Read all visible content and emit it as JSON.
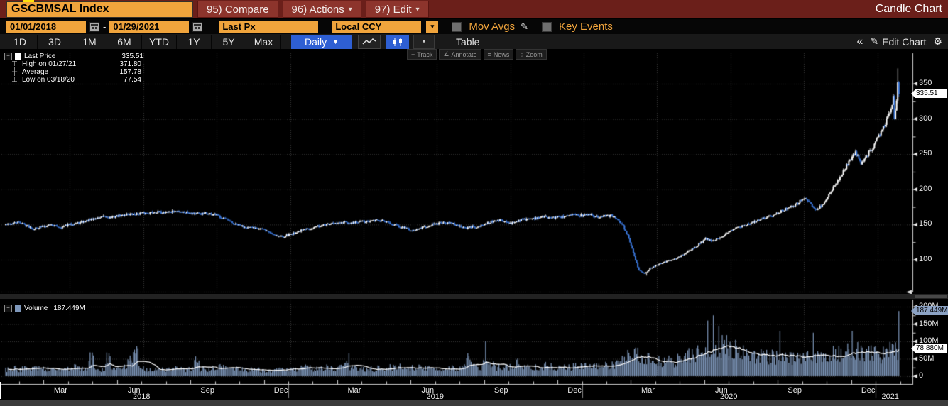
{
  "titlebar": {
    "ticker": "GSCBMSAL Index",
    "compare": "95) Compare",
    "actions": "96) Actions",
    "edit": "97) Edit",
    "right_title": "Candle Chart"
  },
  "fieldbar": {
    "date_from": "01/01/2018",
    "separator": "-",
    "date_to": "01/29/2021",
    "security_field": "Last Px",
    "currency": "Local CCY",
    "mov_avgs_label": "Mov Avgs",
    "key_events_label": "Key Events"
  },
  "toolbar": {
    "ranges": [
      "1D",
      "3D",
      "1M",
      "6M",
      "YTD",
      "1Y",
      "5Y",
      "Max"
    ],
    "frequency": "Daily",
    "table_label": "Table",
    "edit_chart_label": "Edit Chart"
  },
  "chart_toolbar": {
    "track": "Track",
    "annotate": "Annotate",
    "news": "News",
    "zoom": "Zoom"
  },
  "legend": {
    "rows": [
      {
        "label": "Last Price",
        "value": "335.51"
      },
      {
        "label": "High on 01/27/21",
        "value": "371.80"
      },
      {
        "label": "Average",
        "value": "157.78"
      },
      {
        "label": "Low on 03/18/20",
        "value": "77.54"
      }
    ]
  },
  "volume_legend": {
    "label": "Volume",
    "value": "187.449M"
  },
  "badges": {
    "last_price": "335.51",
    "volume": "187.449M",
    "volume_ma": "78.880M"
  },
  "icons": {
    "dropdown_arrow": "▼",
    "caret": "▾",
    "chevrons_left": "«",
    "pencil": "✎",
    "gear": "⚙",
    "track": "+",
    "annotate": "∠",
    "news": "≡",
    "zoom": "○",
    "expander": "−",
    "high_marker": "⊤",
    "avg_marker": "┼",
    "low_marker": "⊥"
  },
  "colors": {
    "amber": "#f0a43c",
    "maroon_bar": "#6b1f1a",
    "maroon_button": "#8d342c",
    "accent_blue": "#2e5fd3",
    "candle_up": "#ffffff",
    "candle_down": "#3c79de",
    "volume_bar": "#7e97ba",
    "grid": "#3a3a3a",
    "ma_line": "#ffffff"
  },
  "chart_data": {
    "type": "candlestick",
    "title": "GSCBMSAL Index, Daily candles with volume, 01/01/2018 - 01/29/2021",
    "panes": [
      "price",
      "volume"
    ],
    "price_axis": {
      "side": "right",
      "ticks": [
        350,
        300,
        250,
        200,
        150,
        100
      ]
    },
    "volume_axis": {
      "side": "right",
      "ticks": [
        {
          "label": "200M",
          "value": 200
        },
        {
          "label": "150M",
          "value": 150
        },
        {
          "label": "100M",
          "value": 100
        },
        {
          "label": "50M",
          "value": 50
        },
        {
          "label": "0",
          "value": 0
        }
      ]
    },
    "time_axis": {
      "months": [
        {
          "label": "Mar",
          "m": 2
        },
        {
          "label": "Jun",
          "m": 5
        },
        {
          "label": "Sep",
          "m": 8
        },
        {
          "label": "Dec",
          "m": 11
        },
        {
          "label": "Mar",
          "m": 14
        },
        {
          "label": "Jun",
          "m": 17
        },
        {
          "label": "Sep",
          "m": 20
        },
        {
          "label": "Dec",
          "m": 23
        },
        {
          "label": "Mar",
          "m": 26
        },
        {
          "label": "Jun",
          "m": 29
        },
        {
          "label": "Sep",
          "m": 32
        },
        {
          "label": "Dec",
          "m": 35
        }
      ],
      "years": [
        {
          "label": "2018",
          "m": 6
        },
        {
          "label": "2019",
          "m": 18
        },
        {
          "label": "2020",
          "m": 30
        },
        {
          "label": "2021",
          "m": 36.6
        }
      ],
      "year_separators_m": [
        12,
        24,
        36
      ]
    },
    "stats": {
      "last_price": 335.51,
      "high": {
        "date": "01/27/21",
        "value": 371.8
      },
      "average": 157.78,
      "low": {
        "date": "03/18/20",
        "value": 77.54
      },
      "last_volume_m": 187.449,
      "volume_ma_m": 78.88
    },
    "sampling": "weekly",
    "weekly_closes": [
      150,
      151,
      153,
      152,
      148,
      144,
      146,
      148,
      150,
      148,
      146,
      149,
      151,
      152,
      154,
      156,
      158,
      160,
      161,
      160,
      162,
      163,
      165,
      164,
      166,
      166,
      167,
      168,
      167,
      168,
      168,
      169,
      168,
      167,
      166,
      165,
      166,
      165,
      163,
      160,
      156,
      151,
      149,
      147,
      145,
      146,
      144,
      141,
      137,
      134,
      133,
      136,
      138,
      141,
      143,
      145,
      147,
      149,
      150,
      151,
      152,
      153,
      151,
      153,
      154,
      154,
      155,
      156,
      155,
      153,
      150,
      147,
      145,
      141,
      143,
      146,
      148,
      150,
      152,
      153,
      152,
      150,
      147,
      145,
      147,
      146,
      150,
      153,
      155,
      156,
      154,
      152,
      155,
      157,
      158,
      159,
      160,
      161,
      160,
      160,
      161,
      162,
      163,
      163,
      163,
      164,
      162,
      161,
      162,
      163,
      158,
      150,
      135,
      110,
      85,
      80,
      88,
      92,
      95,
      98,
      100,
      103,
      107,
      112,
      117,
      123,
      130,
      127,
      129,
      133,
      138,
      143,
      147,
      149,
      152,
      155,
      158,
      160,
      162,
      166,
      171,
      174,
      176,
      183,
      188,
      178,
      170,
      178,
      190,
      202,
      214,
      228,
      242,
      252,
      238,
      248,
      258,
      272,
      288,
      305,
      335.51
    ],
    "weekly_volumes_m": [
      20,
      22,
      19,
      21,
      24,
      26,
      22,
      20,
      22,
      20,
      18,
      22,
      25,
      21,
      19,
      50,
      23,
      20,
      55,
      22,
      20,
      24,
      52,
      62,
      22,
      21,
      19,
      18,
      20,
      19,
      22,
      20,
      18,
      21,
      44,
      20,
      19,
      22,
      25,
      27,
      24,
      22,
      20,
      19,
      21,
      18,
      16,
      15,
      17,
      19,
      22,
      18,
      20,
      22,
      24,
      21,
      23,
      25,
      22,
      20,
      26,
      48,
      24,
      22,
      21,
      22,
      20,
      23,
      21,
      25,
      28,
      26,
      24,
      27,
      25,
      22,
      24,
      22,
      20,
      23,
      25,
      22,
      28,
      52,
      26,
      24,
      100,
      30,
      26,
      28,
      26,
      24,
      40,
      26,
      25,
      28,
      26,
      30,
      27,
      26,
      28,
      25,
      27,
      30,
      28,
      30,
      27,
      29,
      30,
      34,
      38,
      45,
      55,
      60,
      52,
      48,
      46,
      42,
      40,
      44,
      40,
      48,
      55,
      60,
      65,
      80,
      160,
      175,
      145,
      90,
      80,
      75,
      70,
      68,
      62,
      58,
      60,
      56,
      55,
      130,
      60,
      52,
      50,
      48,
      55,
      125,
      60,
      58,
      62,
      70,
      65,
      68,
      130,
      72,
      66,
      70,
      62,
      58,
      68,
      75,
      75
    ]
  }
}
